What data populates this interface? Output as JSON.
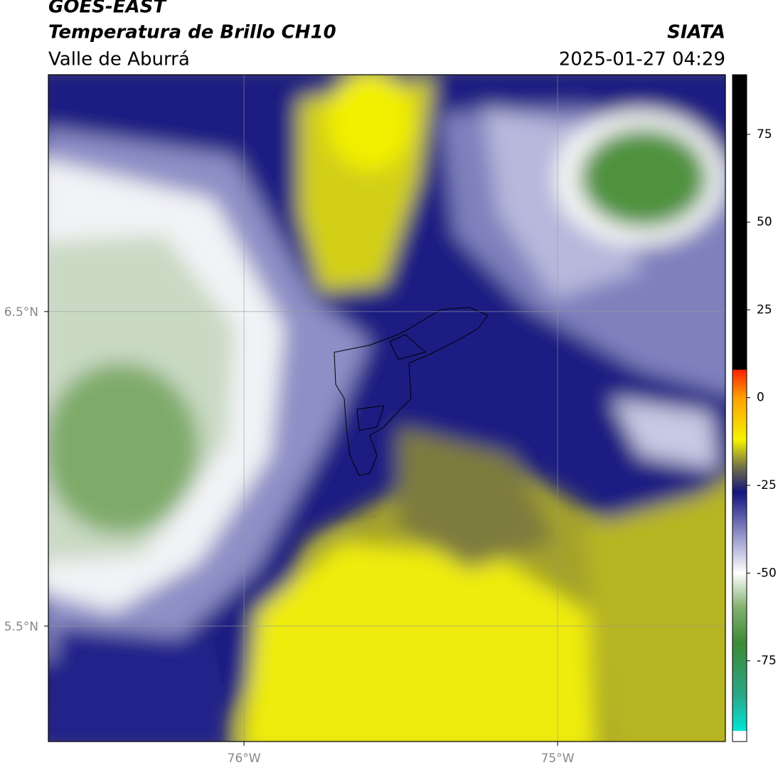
{
  "header": {
    "title": "GOES-EAST",
    "subtitle": "Temperatura de Brillo CH10",
    "region": "Valle de Aburrá",
    "brand": "SIATA",
    "datetime": "2025-01-27 04:29"
  },
  "map": {
    "xlim": [
      -76.624,
      -74.465
    ],
    "ylim": [
      5.133,
      7.253
    ],
    "lat_ticks": [
      {
        "value": 6.5,
        "label": "6.5°N"
      },
      {
        "value": 5.5,
        "label": "5.5°N"
      }
    ],
    "lon_ticks": [
      {
        "value": -76,
        "label": "76°W"
      },
      {
        "value": -75,
        "label": "75°W"
      }
    ]
  },
  "colorbar": {
    "ylim": [
      -98,
      92
    ],
    "ticks": [
      75,
      50,
      25,
      0,
      -25,
      -50,
      -75
    ],
    "stops": [
      {
        "value": -98,
        "color": "#ffffff"
      },
      {
        "value": -95,
        "color": "#ffffff"
      },
      {
        "value": -95,
        "color": "#00e5d8"
      },
      {
        "value": -85,
        "color": "#2aa889"
      },
      {
        "value": -70,
        "color": "#3c8a36"
      },
      {
        "value": -60,
        "color": "#80b06c"
      },
      {
        "value": -50,
        "color": "#ffffff"
      },
      {
        "value": -40,
        "color": "#9a9ccc"
      },
      {
        "value": -27,
        "color": "#14147e"
      },
      {
        "value": -20,
        "color": "#6e6c4a"
      },
      {
        "value": -12,
        "color": "#f4f400"
      },
      {
        "value": 0,
        "color": "#ffa000"
      },
      {
        "value": 8,
        "color": "#ff1e00"
      },
      {
        "value": 8,
        "color": "#000000"
      },
      {
        "value": 92,
        "color": "#000000"
      }
    ]
  }
}
